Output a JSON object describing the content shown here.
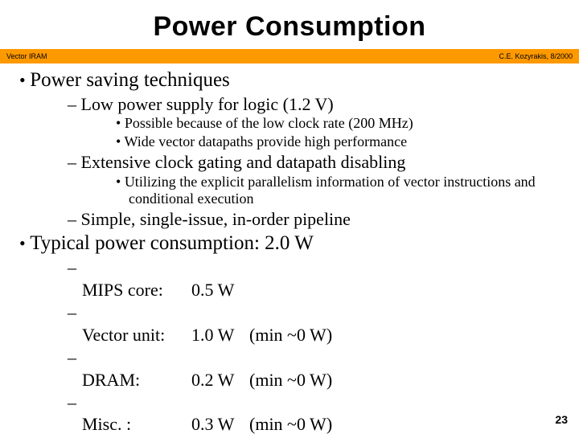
{
  "title": "Power Consumption",
  "stripe": {
    "left": "Vector IRAM",
    "right": "C.E. Kozyrakis, 8/2000",
    "bg_color": "#ff9900"
  },
  "bullets_a": {
    "main": "Power saving techniques",
    "sub1": "Low power supply for logic (1.2 V)",
    "sub1_pts": [
      "Possible because of the low clock rate (200 MHz)",
      "Wide vector datapaths provide high performance"
    ],
    "sub2": "Extensive clock gating and datapath disabling",
    "sub2_pts": [
      "Utilizing the explicit parallelism information of vector instructions and conditional execution"
    ],
    "sub3": "Simple, single-issue, in-order pipeline"
  },
  "bullets_b": {
    "main": "Typical power consumption: 2.0 W",
    "rows": [
      {
        "label": "MIPS core:",
        "value": "0.5 W",
        "note": ""
      },
      {
        "label": "Vector unit:",
        "value": "1.0 W",
        "note": "(min ~0 W)"
      },
      {
        "label": "DRAM:",
        "value": "0.2 W",
        "note": "(min ~0 W)"
      },
      {
        "label": "Misc. :",
        "value": "0.3 W",
        "note": "(min ~0 W)"
      }
    ]
  },
  "page_number": "23",
  "fonts": {
    "title_family": "Arial",
    "title_size_pt": 34,
    "body_family": "Times New Roman",
    "lvl1_size_pt": 25,
    "lvl2_size_pt": 22,
    "lvl3_size_pt": 18
  },
  "colors": {
    "background": "#ffffff",
    "text": "#000000",
    "stripe": "#ff9900"
  }
}
